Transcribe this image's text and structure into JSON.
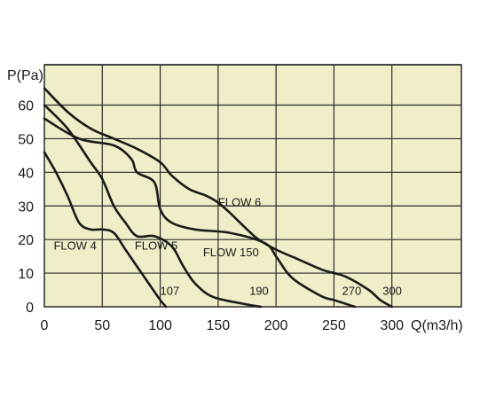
{
  "chart_data": {
    "type": "line",
    "title": "",
    "xlabel": "Q(m3/h)",
    "ylabel": "P(Pa)",
    "xlim": [
      0,
      360
    ],
    "ylim": [
      0,
      72
    ],
    "x_ticks": [
      0,
      50,
      100,
      150,
      200,
      250,
      300
    ],
    "y_ticks": [
      0,
      10,
      20,
      30,
      40,
      50,
      60
    ],
    "grid": true,
    "colors": {
      "plot_bg": "#efeec8",
      "grid": "#2a2a2a",
      "line": "#1a1a1a"
    },
    "series": [
      {
        "name": "FLOW 4",
        "end_label": "107",
        "points": [
          [
            0,
            46
          ],
          [
            10,
            40
          ],
          [
            20,
            33
          ],
          [
            30,
            25
          ],
          [
            40,
            23
          ],
          [
            50,
            23
          ],
          [
            60,
            22
          ],
          [
            70,
            17
          ],
          [
            80,
            12
          ],
          [
            90,
            7
          ],
          [
            100,
            2
          ],
          [
            105,
            0
          ]
        ]
      },
      {
        "name": "FLOW 5",
        "end_label": "190",
        "points": [
          [
            0,
            60
          ],
          [
            20,
            53
          ],
          [
            40,
            43
          ],
          [
            50,
            38
          ],
          [
            60,
            30
          ],
          [
            70,
            25
          ],
          [
            80,
            21
          ],
          [
            95,
            21
          ],
          [
            110,
            18
          ],
          [
            120,
            12
          ],
          [
            130,
            7
          ],
          [
            145,
            3
          ],
          [
            170,
            1
          ],
          [
            187,
            0
          ]
        ]
      },
      {
        "name": "FLOW 150",
        "end_label": "270",
        "points": [
          [
            0,
            56
          ],
          [
            30,
            50
          ],
          [
            60,
            48
          ],
          [
            75,
            44
          ],
          [
            80,
            40
          ],
          [
            95,
            37
          ],
          [
            100,
            29
          ],
          [
            110,
            25
          ],
          [
            130,
            23
          ],
          [
            160,
            22
          ],
          [
            190,
            19
          ],
          [
            200,
            15
          ],
          [
            210,
            10
          ],
          [
            220,
            7
          ],
          [
            240,
            3
          ],
          [
            250,
            2
          ],
          [
            268,
            0
          ]
        ]
      },
      {
        "name": "FLOW 6",
        "end_label": "300",
        "points": [
          [
            0,
            65
          ],
          [
            20,
            58
          ],
          [
            40,
            53
          ],
          [
            60,
            50
          ],
          [
            80,
            47
          ],
          [
            100,
            43
          ],
          [
            110,
            39
          ],
          [
            125,
            35
          ],
          [
            140,
            33
          ],
          [
            150,
            31
          ],
          [
            160,
            28
          ],
          [
            175,
            23
          ],
          [
            185,
            20
          ],
          [
            200,
            17
          ],
          [
            220,
            14
          ],
          [
            240,
            11
          ],
          [
            260,
            9
          ],
          [
            280,
            5
          ],
          [
            290,
            2
          ],
          [
            300,
            0
          ]
        ]
      }
    ]
  }
}
